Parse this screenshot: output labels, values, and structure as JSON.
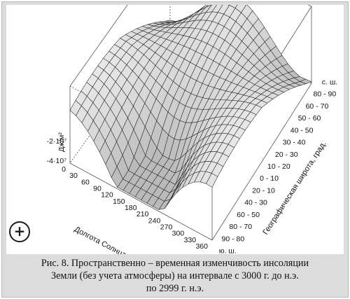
{
  "figure": {
    "caption": [
      "Рис. 8. Пространственно – временная изменчивость инсоляции",
      "Земли (без учета атмосферы) на интервале с 3000 г. до н.э.",
      "по 2999 г. н.э."
    ],
    "zoom_button_label": "+"
  },
  "chart_data": {
    "type": "surface",
    "title": "",
    "zlabel": "Дж/м²",
    "z_ticks": [
      "-2·10⁷",
      "-4·10⁷"
    ],
    "xlabel": "Долгота Солнца, град.",
    "x_ticks": [
      "0",
      "30",
      "60",
      "90",
      "120",
      "150",
      "180",
      "210",
      "240",
      "270",
      "300",
      "330",
      "360"
    ],
    "x_values": [
      0,
      30,
      60,
      90,
      120,
      150,
      180,
      210,
      240,
      270,
      300,
      330,
      360
    ],
    "ylabel": "Географическая широта, град.",
    "y_ticks": [
      "90 - 80",
      "80 - 70",
      "60 - 50",
      "40 - 30",
      "20 - 10",
      "0 - 10",
      "10 - 20",
      "20 - 30",
      "30 - 40",
      "40 - 50",
      "50 - 60",
      "60 - 70",
      "80 - 90"
    ],
    "y_top_label": "с. ш.",
    "y_bottom_label": "ю. ш."
  }
}
